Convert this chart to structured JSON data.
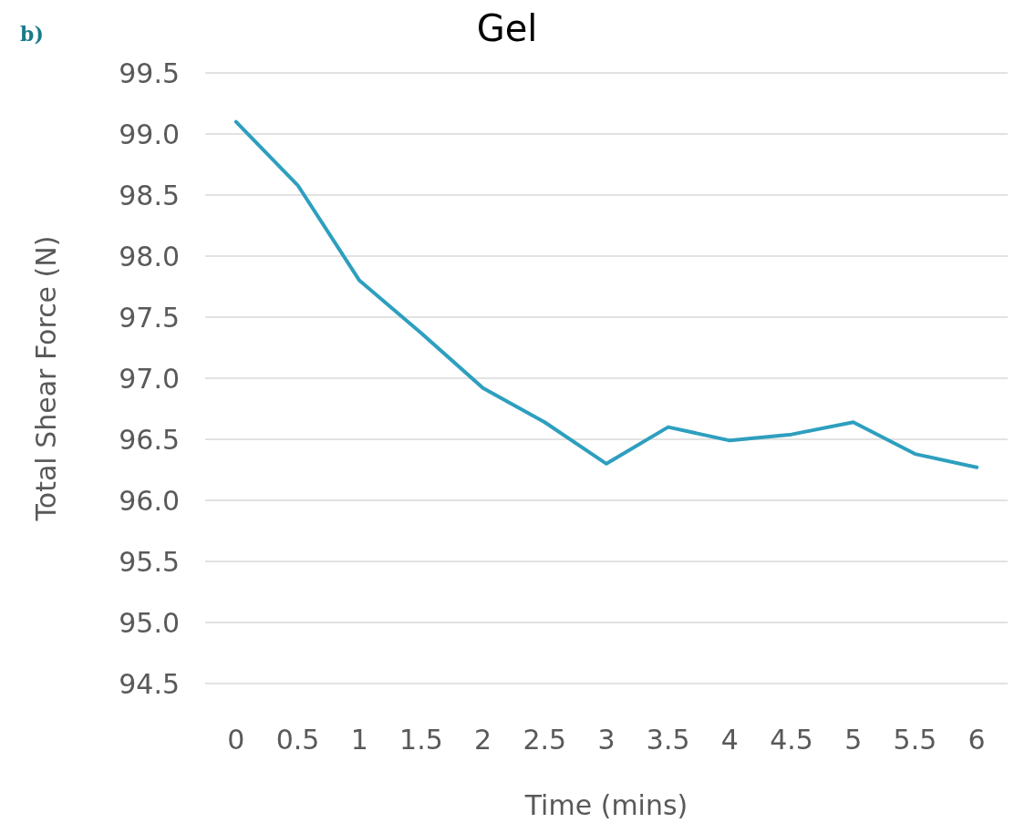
{
  "chart_data": {
    "type": "line",
    "title": "Gel",
    "xlabel": "Time (mins)",
    "ylabel": "Total Shear Force (N)",
    "annotations": [
      "b)"
    ],
    "categories": [
      "0",
      "0.5",
      "1",
      "1.5",
      "2",
      "2.5",
      "3",
      "3.5",
      "4",
      "4.5",
      "5",
      "5.5",
      "6"
    ],
    "series": [
      {
        "color": "#2e9fbf",
        "values": [
          99.1,
          98.58,
          97.8,
          97.37,
          96.92,
          96.64,
          96.3,
          96.6,
          96.49,
          96.54,
          96.64,
          96.38,
          96.27
        ]
      }
    ],
    "ylim": [
      94.5,
      99.5
    ],
    "yticks": [
      {
        "value": 94.5,
        "label": "94.5"
      },
      {
        "value": 95,
        "label": "95.0"
      },
      {
        "value": 95.5,
        "label": "95.5"
      },
      {
        "value": 96,
        "label": "96.0"
      },
      {
        "value": 96.5,
        "label": "96.5"
      },
      {
        "value": 97,
        "label": "97.0"
      },
      {
        "value": 97.5,
        "label": "97.5"
      },
      {
        "value": 98,
        "label": "98.0"
      },
      {
        "value": 98.5,
        "label": "98.5"
      },
      {
        "value": 99,
        "label": "99.0"
      },
      {
        "value": 99.5,
        "label": "99.5"
      }
    ],
    "grid": "y",
    "marker": "none",
    "line_style": "solid"
  }
}
